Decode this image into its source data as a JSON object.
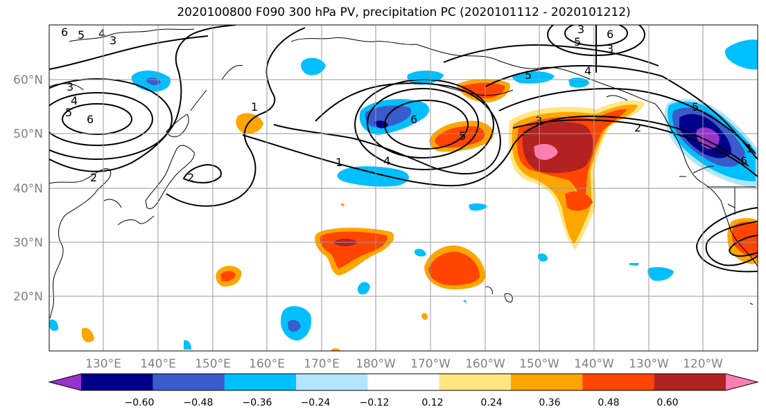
{
  "title": "2020100800 F090 300 hPa PV, precipitation PC (2020101112 - 2020101212)",
  "map": {
    "lon_labels": [
      "130°E",
      "140°E",
      "150°E",
      "160°E",
      "170°E",
      "180°W",
      "170°W",
      "160°W",
      "150°W",
      "140°W",
      "130°W",
      "120°W"
    ],
    "lat_labels": [
      "60°N",
      "50°N",
      "40°N",
      "30°N",
      "20°N"
    ],
    "label_color": "#808080",
    "grid_color": "#9a9a9a"
  },
  "colorbar": {
    "colors": [
      "#9932cc",
      "#00008b",
      "#3a5bcc",
      "#00bfff",
      "#b3e5fc",
      "#ffffff",
      "#ffe680",
      "#ffa500",
      "#ff4500",
      "#b22222",
      "#ff80b0"
    ],
    "tick_labels": [
      "−0.60",
      "−0.48",
      "−0.36",
      "−0.24",
      "−0.12",
      "0.12",
      "0.24",
      "0.36",
      "0.48",
      "0.60"
    ]
  },
  "contour_labels": [
    "6",
    "5",
    "4",
    "3",
    "3",
    "4",
    "5",
    "6",
    "2",
    "1",
    "2",
    "1",
    "5",
    "4",
    "4",
    "5",
    "3",
    "2",
    "5",
    "6",
    "1",
    "6",
    "5",
    "3",
    "3",
    "6"
  ]
}
